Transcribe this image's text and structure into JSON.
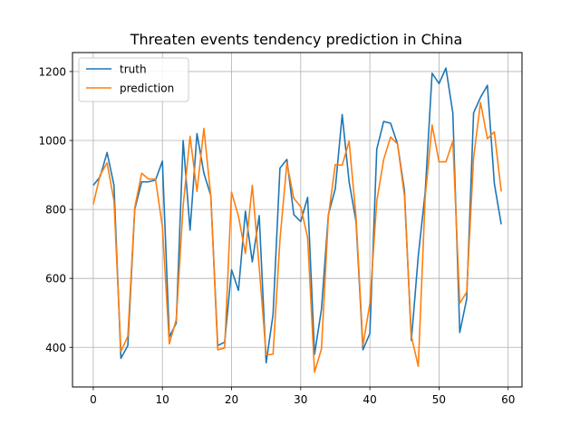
{
  "chart_data": {
    "type": "line",
    "title": "Threaten events tendency prediction in China",
    "xlabel": "",
    "ylabel": "",
    "xlim": [
      -3,
      62
    ],
    "ylim": [
      285,
      1255
    ],
    "xticks": [
      0,
      10,
      20,
      30,
      40,
      50,
      60
    ],
    "yticks": [
      400,
      600,
      800,
      1000,
      1200
    ],
    "grid": true,
    "legend_position": "top-left",
    "x": [
      0,
      1,
      2,
      3,
      4,
      5,
      6,
      7,
      8,
      9,
      10,
      11,
      12,
      13,
      14,
      15,
      16,
      17,
      18,
      19,
      20,
      21,
      22,
      23,
      24,
      25,
      26,
      27,
      28,
      29,
      30,
      31,
      32,
      33,
      34,
      35,
      36,
      37,
      38,
      39,
      40,
      41,
      42,
      43,
      44,
      45,
      46,
      47,
      48,
      49,
      50,
      51,
      52,
      53,
      54,
      55,
      56,
      57,
      58,
      59
    ],
    "series": [
      {
        "name": "truth",
        "color": "#1f77b4",
        "values": [
          870,
          895,
          965,
          870,
          368,
          405,
          800,
          880,
          880,
          885,
          940,
          430,
          470,
          1000,
          740,
          1020,
          905,
          840,
          405,
          415,
          625,
          565,
          795,
          648,
          782,
          355,
          495,
          920,
          945,
          785,
          765,
          835,
          380,
          510,
          785,
          860,
          1075,
          880,
          765,
          393,
          440,
          975,
          1055,
          1050,
          990,
          855,
          420,
          665,
          850,
          1195,
          1165,
          1210,
          1080,
          443,
          540,
          1080,
          1125,
          1160,
          875,
          757
        ]
      },
      {
        "name": "prediction",
        "color": "#ff7f0e",
        "values": [
          815,
          900,
          935,
          825,
          388,
          432,
          805,
          905,
          888,
          888,
          750,
          410,
          480,
          810,
          1012,
          852,
          1035,
          838,
          393,
          398,
          850,
          780,
          672,
          870,
          632,
          378,
          380,
          712,
          935,
          832,
          808,
          718,
          328,
          395,
          780,
          930,
          928,
          998,
          778,
          405,
          527,
          824,
          945,
          1010,
          990,
          840,
          432,
          345,
          835,
          1045,
          938,
          938,
          998,
          528,
          560,
          950,
          1110,
          1005,
          1025,
          852
        ]
      }
    ]
  }
}
